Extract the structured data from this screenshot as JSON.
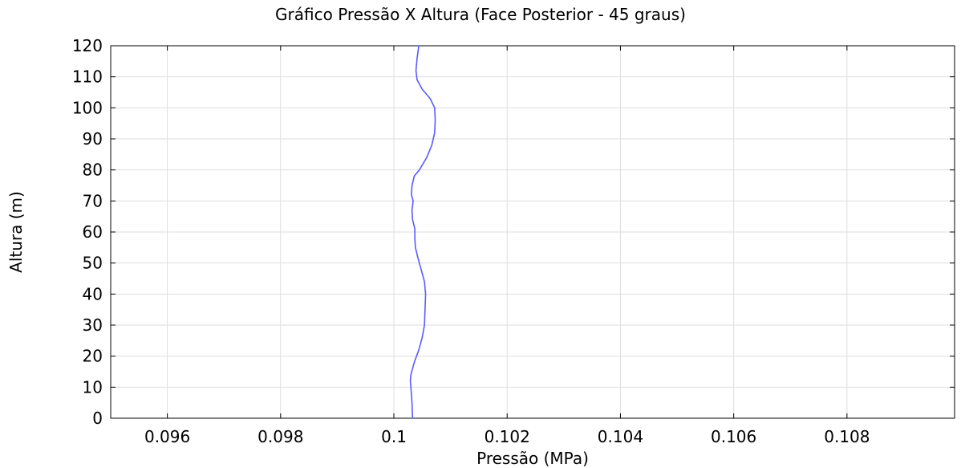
{
  "chart_data": {
    "type": "line",
    "title": "Gráfico Pressão X Altura (Face Posterior - 45 graus)",
    "xlabel": "Pressão (MPa)",
    "ylabel": "Altura (m)",
    "xlim": [
      0.095,
      0.1099
    ],
    "ylim": [
      0,
      120
    ],
    "x_ticks": [
      "0.096",
      "0.098",
      "0.1",
      "0.102",
      "0.104",
      "0.106",
      "0.108"
    ],
    "x_tick_values": [
      0.096,
      0.098,
      0.1,
      0.102,
      0.104,
      0.106,
      0.108
    ],
    "y_ticks": [
      "0",
      "10",
      "20",
      "30",
      "40",
      "50",
      "60",
      "70",
      "80",
      "90",
      "100",
      "110",
      "120"
    ],
    "y_tick_values": [
      0,
      10,
      20,
      30,
      40,
      50,
      60,
      70,
      80,
      90,
      100,
      110,
      120
    ],
    "grid": true,
    "series": [
      {
        "color": "#5b5bff",
        "points": [
          [
            0.10033,
            0
          ],
          [
            0.10032,
            5
          ],
          [
            0.1003,
            10
          ],
          [
            0.10029,
            12
          ],
          [
            0.1003,
            14
          ],
          [
            0.10036,
            18
          ],
          [
            0.10044,
            22
          ],
          [
            0.1005,
            26
          ],
          [
            0.10054,
            30
          ],
          [
            0.10055,
            35
          ],
          [
            0.10056,
            40
          ],
          [
            0.10054,
            44
          ],
          [
            0.10048,
            48
          ],
          [
            0.10042,
            52
          ],
          [
            0.10038,
            55
          ],
          [
            0.10037,
            58
          ],
          [
            0.10037,
            61
          ],
          [
            0.10033,
            64
          ],
          [
            0.10032,
            67
          ],
          [
            0.10034,
            70
          ],
          [
            0.10031,
            72
          ],
          [
            0.10032,
            75
          ],
          [
            0.10036,
            78
          ],
          [
            0.10045,
            80
          ],
          [
            0.10058,
            84
          ],
          [
            0.10067,
            88
          ],
          [
            0.10072,
            92
          ],
          [
            0.10073,
            96
          ],
          [
            0.10072,
            100
          ],
          [
            0.10064,
            103
          ],
          [
            0.1005,
            106
          ],
          [
            0.10041,
            109
          ],
          [
            0.10039,
            112
          ],
          [
            0.10041,
            116
          ],
          [
            0.10044,
            120
          ]
        ]
      }
    ]
  }
}
